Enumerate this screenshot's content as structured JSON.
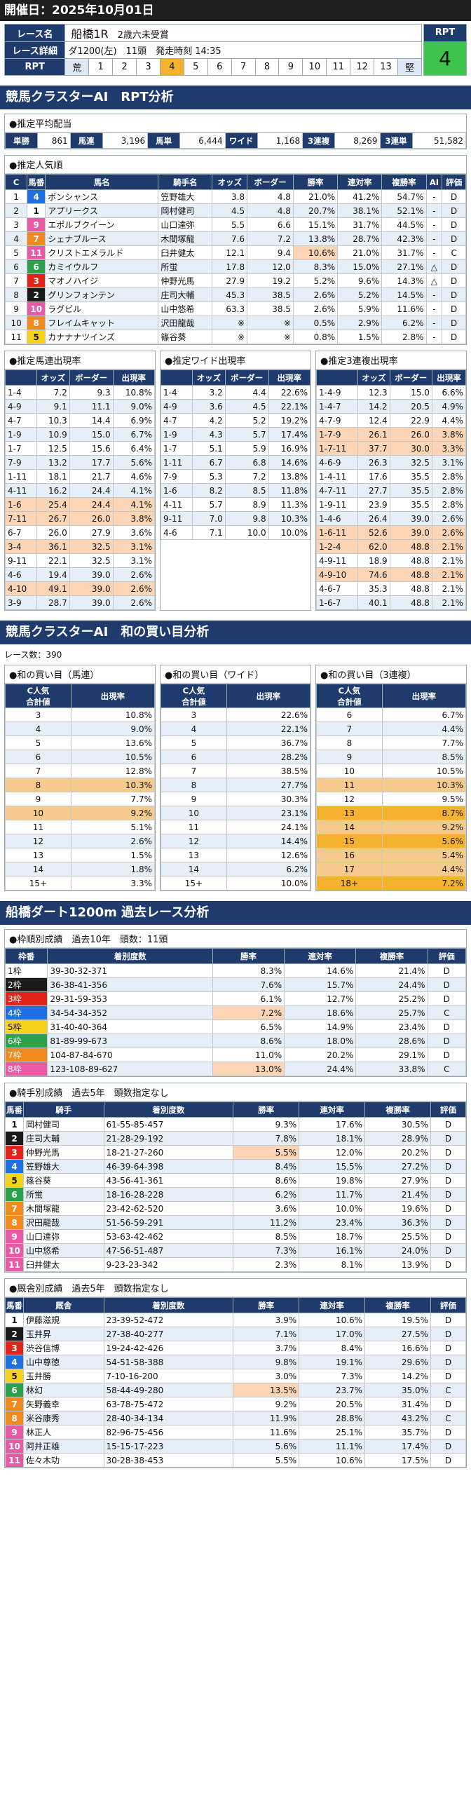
{
  "header": {
    "date": "開催日：2025年10月01日"
  },
  "race": {
    "name_label": "レース名",
    "name": "船橋1R",
    "cond": "2歳六未受賞",
    "detail_label": "レース詳細",
    "detail": "ダ1200(左)　11頭　発走時刻 14:35",
    "rpt_label": "RPT",
    "scale": [
      "荒",
      "1",
      "2",
      "3",
      "4",
      "5",
      "6",
      "7",
      "8",
      "9",
      "10",
      "11",
      "12",
      "13",
      "堅"
    ],
    "rpt_value": "4"
  },
  "sec1": {
    "title": "競馬クラスターAI　RPT分析"
  },
  "payout": {
    "title": "●推定平均配当",
    "items": [
      [
        "単勝",
        "861"
      ],
      [
        "馬連",
        "3,196"
      ],
      [
        "馬単",
        "6,444"
      ],
      [
        "ワイド",
        "1,168"
      ],
      [
        "3連複",
        "8,269"
      ],
      [
        "3連単",
        "51,582"
      ]
    ]
  },
  "pop": {
    "title": "●推定人気順",
    "headers": [
      "C",
      "馬番",
      "馬名",
      "騎手名",
      "オッズ",
      "ボーダー",
      "勝率",
      "連対率",
      "複勝率",
      "AI",
      "評価"
    ],
    "rows": [
      [
        "1",
        "4",
        "ボンシャンス",
        "笠野雄大",
        "3.8",
        "4.8",
        "21.0%",
        "41.2%",
        "54.7%",
        "-",
        "D"
      ],
      [
        "2",
        "1",
        "アプリークス",
        "岡村健司",
        "4.5",
        "4.8",
        "20.7%",
        "38.1%",
        "52.1%",
        "-",
        "D"
      ],
      [
        "3",
        "9",
        "エポルブクイーン",
        "山口達弥",
        "5.5",
        "6.6",
        "15.1%",
        "31.7%",
        "44.5%",
        "-",
        "D"
      ],
      [
        "4",
        "7",
        "シェナブルース",
        "木間塚龍",
        "7.6",
        "7.2",
        "13.8%",
        "28.7%",
        "42.3%",
        "-",
        "D"
      ],
      [
        "5",
        "11",
        "クリストエメラルド",
        "臼井健太",
        "12.1",
        "9.4",
        "10.6%",
        "21.0%",
        "31.7%",
        "-",
        "C"
      ],
      [
        "6",
        "6",
        "カミイウルフ",
        "所蛍",
        "17.8",
        "12.0",
        "8.3%",
        "15.0%",
        "27.1%",
        "△",
        "D"
      ],
      [
        "7",
        "3",
        "マオノハイジ",
        "仲野光馬",
        "27.9",
        "19.2",
        "5.2%",
        "9.6%",
        "14.3%",
        "△",
        "D"
      ],
      [
        "8",
        "2",
        "グリンフォンテン",
        "庄司大輔",
        "45.3",
        "38.5",
        "2.6%",
        "5.2%",
        "14.5%",
        "-",
        "D"
      ],
      [
        "9",
        "10",
        "ラグビル",
        "山中悠希",
        "63.3",
        "38.5",
        "2.6%",
        "5.9%",
        "11.6%",
        "-",
        "D"
      ],
      [
        "10",
        "8",
        "フレイムキャット",
        "沢田龍哉",
        "※",
        "※",
        "0.5%",
        "2.9%",
        "6.2%",
        "-",
        "D"
      ],
      [
        "11",
        "5",
        "カナナナツインズ",
        "篠谷葵",
        "※",
        "※",
        "0.8%",
        "1.5%",
        "2.8%",
        "-",
        "D"
      ]
    ]
  },
  "umaren": {
    "title": "●推定馬連出現率",
    "headers": [
      "",
      "オッズ",
      "ボーダー",
      "出現率"
    ],
    "rows": [
      [
        "1-4",
        "7.2",
        "9.3",
        "10.8%"
      ],
      [
        "4-9",
        "9.1",
        "11.1",
        "9.0%"
      ],
      [
        "4-7",
        "10.3",
        "14.4",
        "6.9%"
      ],
      [
        "1-9",
        "10.9",
        "15.0",
        "6.7%"
      ],
      [
        "1-7",
        "12.5",
        "15.6",
        "6.4%"
      ],
      [
        "7-9",
        "13.2",
        "17.7",
        "5.6%"
      ],
      [
        "1-11",
        "18.1",
        "21.7",
        "4.6%"
      ],
      [
        "4-11",
        "16.2",
        "24.4",
        "4.1%"
      ],
      [
        "1-6",
        "25.4",
        "24.4",
        "4.1%"
      ],
      [
        "7-11",
        "26.7",
        "26.0",
        "3.8%"
      ],
      [
        "6-7",
        "26.0",
        "27.9",
        "3.6%"
      ],
      [
        "3-4",
        "36.1",
        "32.5",
        "3.1%"
      ],
      [
        "9-11",
        "22.1",
        "32.5",
        "3.1%"
      ],
      [
        "4-6",
        "19.4",
        "39.0",
        "2.6%"
      ],
      [
        "4-10",
        "49.1",
        "39.0",
        "2.6%"
      ],
      [
        "3-9",
        "28.7",
        "39.0",
        "2.6%"
      ]
    ]
  },
  "wide": {
    "title": "●推定ワイド出現率",
    "headers": [
      "",
      "オッズ",
      "ボーダー",
      "出現率"
    ],
    "rows": [
      [
        "1-4",
        "3.2",
        "4.4",
        "22.6%"
      ],
      [
        "4-9",
        "3.6",
        "4.5",
        "22.1%"
      ],
      [
        "4-7",
        "4.2",
        "5.2",
        "19.2%"
      ],
      [
        "1-9",
        "4.3",
        "5.7",
        "17.4%"
      ],
      [
        "1-7",
        "5.1",
        "5.9",
        "16.9%"
      ],
      [
        "1-11",
        "6.7",
        "6.8",
        "14.6%"
      ],
      [
        "7-9",
        "5.3",
        "7.2",
        "13.8%"
      ],
      [
        "1-6",
        "8.2",
        "8.5",
        "11.8%"
      ],
      [
        "4-11",
        "5.7",
        "8.9",
        "11.3%"
      ],
      [
        "9-11",
        "7.0",
        "9.8",
        "10.3%"
      ],
      [
        "4-6",
        "7.1",
        "10.0",
        "10.0%"
      ]
    ]
  },
  "trio": {
    "title": "●推定3連複出現率",
    "headers": [
      "",
      "オッズ",
      "ボーダー",
      "出現率"
    ],
    "rows": [
      [
        "1-4-9",
        "12.3",
        "15.0",
        "6.6%"
      ],
      [
        "1-4-7",
        "14.2",
        "20.5",
        "4.9%"
      ],
      [
        "4-7-9",
        "12.4",
        "22.9",
        "4.4%"
      ],
      [
        "1-7-9",
        "26.1",
        "26.0",
        "3.8%"
      ],
      [
        "1-7-11",
        "37.7",
        "30.0",
        "3.3%"
      ],
      [
        "4-6-9",
        "26.3",
        "32.5",
        "3.1%"
      ],
      [
        "1-4-11",
        "17.6",
        "35.5",
        "2.8%"
      ],
      [
        "4-7-11",
        "27.7",
        "35.5",
        "2.8%"
      ],
      [
        "1-9-11",
        "23.9",
        "35.5",
        "2.8%"
      ],
      [
        "1-4-6",
        "26.4",
        "39.0",
        "2.6%"
      ],
      [
        "1-6-11",
        "52.6",
        "39.0",
        "2.6%"
      ],
      [
        "1-2-4",
        "62.0",
        "48.8",
        "2.1%"
      ],
      [
        "4-9-11",
        "18.9",
        "48.8",
        "2.1%"
      ],
      [
        "4-9-10",
        "74.6",
        "48.8",
        "2.1%"
      ],
      [
        "4-6-7",
        "35.3",
        "48.8",
        "2.1%"
      ],
      [
        "1-6-7",
        "40.1",
        "48.8",
        "2.1%"
      ]
    ]
  },
  "sec2": {
    "title": "競馬クラスターAI　和の買い目分析",
    "count": "レース数：390"
  },
  "wa_umaren": {
    "title": "●和の買い目（馬連）",
    "h1": "C人気",
    "h1b": "合計値",
    "h2": "出現率",
    "rows": [
      [
        "3",
        "10.8%"
      ],
      [
        "4",
        "9.0%"
      ],
      [
        "5",
        "13.6%"
      ],
      [
        "6",
        "10.5%"
      ],
      [
        "7",
        "12.8%"
      ],
      [
        "8",
        "10.3%"
      ],
      [
        "9",
        "7.7%"
      ],
      [
        "10",
        "9.2%"
      ],
      [
        "11",
        "5.1%"
      ],
      [
        "12",
        "2.6%"
      ],
      [
        "13",
        "1.5%"
      ],
      [
        "14",
        "1.8%"
      ],
      [
        "15+",
        "3.3%"
      ]
    ]
  },
  "wa_wide": {
    "title": "●和の買い目（ワイド）",
    "h1": "C人気",
    "h1b": "合計値",
    "h2": "出現率",
    "rows": [
      [
        "3",
        "22.6%"
      ],
      [
        "4",
        "22.1%"
      ],
      [
        "5",
        "36.7%"
      ],
      [
        "6",
        "28.2%"
      ],
      [
        "7",
        "38.5%"
      ],
      [
        "8",
        "27.7%"
      ],
      [
        "9",
        "30.3%"
      ],
      [
        "10",
        "23.1%"
      ],
      [
        "11",
        "24.1%"
      ],
      [
        "12",
        "14.4%"
      ],
      [
        "13",
        "12.6%"
      ],
      [
        "14",
        "6.2%"
      ],
      [
        "15+",
        "10.0%"
      ]
    ]
  },
  "wa_trio": {
    "title": "●和の買い目（3連複）",
    "h1": "C人気",
    "h1b": "合計値",
    "h2": "出現率",
    "rows": [
      [
        "6",
        "6.7%"
      ],
      [
        "7",
        "4.4%"
      ],
      [
        "8",
        "7.7%"
      ],
      [
        "9",
        "8.5%"
      ],
      [
        "10",
        "10.5%"
      ],
      [
        "11",
        "10.3%"
      ],
      [
        "12",
        "9.5%"
      ],
      [
        "13",
        "8.7%"
      ],
      [
        "14",
        "9.2%"
      ],
      [
        "15",
        "5.6%"
      ],
      [
        "16",
        "5.4%"
      ],
      [
        "17",
        "4.4%"
      ],
      [
        "18+",
        "7.2%"
      ]
    ]
  },
  "sec3": {
    "title": "船橋ダート1200m 過去レース分析"
  },
  "waku": {
    "title": "●枠順別成績　過去10年　頭数：11頭",
    "headers": [
      "枠番",
      "着別度数",
      "勝率",
      "連対率",
      "複勝率",
      "評価"
    ],
    "rows": [
      [
        "1枠",
        "39-30-32-371",
        "8.3%",
        "14.6%",
        "21.4%",
        "D"
      ],
      [
        "2枠",
        "36-38-41-356",
        "7.6%",
        "15.7%",
        "24.4%",
        "D"
      ],
      [
        "3枠",
        "29-31-59-353",
        "6.1%",
        "12.7%",
        "25.2%",
        "D"
      ],
      [
        "4枠",
        "34-54-34-352",
        "7.2%",
        "18.6%",
        "25.7%",
        "C"
      ],
      [
        "5枠",
        "31-40-40-364",
        "6.5%",
        "14.9%",
        "23.4%",
        "D"
      ],
      [
        "6枠",
        "81-89-99-673",
        "8.6%",
        "18.0%",
        "28.6%",
        "D"
      ],
      [
        "7枠",
        "104-87-84-670",
        "11.0%",
        "20.2%",
        "29.1%",
        "D"
      ],
      [
        "8枠",
        "123-108-89-627",
        "13.0%",
        "24.4%",
        "33.8%",
        "C"
      ]
    ]
  },
  "jockey": {
    "title": "●騎手別成績　過去5年　頭数指定なし",
    "headers": [
      "馬番",
      "騎手",
      "着別度数",
      "勝率",
      "連対率",
      "複勝率",
      "評価"
    ],
    "rows": [
      [
        "1",
        "岡村健司",
        "61-55-85-457",
        "9.3%",
        "17.6%",
        "30.5%",
        "D"
      ],
      [
        "2",
        "庄司大輔",
        "21-28-29-192",
        "7.8%",
        "18.1%",
        "28.9%",
        "D"
      ],
      [
        "3",
        "仲野光馬",
        "18-21-27-260",
        "5.5%",
        "12.0%",
        "20.2%",
        "D"
      ],
      [
        "4",
        "笠野雄大",
        "46-39-64-398",
        "8.4%",
        "15.5%",
        "27.2%",
        "D"
      ],
      [
        "5",
        "篠谷葵",
        "43-56-41-361",
        "8.6%",
        "19.8%",
        "27.9%",
        "D"
      ],
      [
        "6",
        "所蛍",
        "18-16-28-228",
        "6.2%",
        "11.7%",
        "21.4%",
        "D"
      ],
      [
        "7",
        "木間塚龍",
        "23-42-62-520",
        "3.6%",
        "10.0%",
        "19.6%",
        "D"
      ],
      [
        "8",
        "沢田龍哉",
        "51-56-59-291",
        "11.2%",
        "23.4%",
        "36.3%",
        "D"
      ],
      [
        "9",
        "山口達弥",
        "53-63-42-462",
        "8.5%",
        "18.7%",
        "25.5%",
        "D"
      ],
      [
        "10",
        "山中悠希",
        "47-56-51-487",
        "7.3%",
        "16.1%",
        "24.0%",
        "D"
      ],
      [
        "11",
        "臼井健太",
        "9-23-23-342",
        "2.3%",
        "8.1%",
        "13.9%",
        "D"
      ]
    ]
  },
  "trainer": {
    "title": "●厩舎別成績　過去5年　頭数指定なし",
    "headers": [
      "馬番",
      "厩舎",
      "着別度数",
      "勝率",
      "連対率",
      "複勝率",
      "評価"
    ],
    "rows": [
      [
        "1",
        "伊藤滋規",
        "23-39-52-472",
        "3.9%",
        "10.6%",
        "19.5%",
        "D"
      ],
      [
        "2",
        "玉井昇",
        "27-38-40-277",
        "7.1%",
        "17.0%",
        "27.5%",
        "D"
      ],
      [
        "3",
        "渋谷信博",
        "19-24-42-426",
        "3.7%",
        "8.4%",
        "16.6%",
        "D"
      ],
      [
        "4",
        "山中尊徳",
        "54-51-58-388",
        "9.8%",
        "19.1%",
        "29.6%",
        "D"
      ],
      [
        "5",
        "玉井勝",
        "7-10-16-200",
        "3.0%",
        "7.3%",
        "14.2%",
        "D"
      ],
      [
        "6",
        "林幻",
        "58-44-49-280",
        "13.5%",
        "23.7%",
        "35.0%",
        "C"
      ],
      [
        "7",
        "矢野義幸",
        "63-78-75-472",
        "9.2%",
        "20.5%",
        "31.4%",
        "D"
      ],
      [
        "8",
        "米谷康秀",
        "28-40-34-134",
        "11.9%",
        "28.8%",
        "43.2%",
        "C"
      ],
      [
        "9",
        "林正人",
        "82-96-75-456",
        "11.6%",
        "25.1%",
        "35.7%",
        "D"
      ],
      [
        "10",
        "阿井正雄",
        "15-15-17-223",
        "5.6%",
        "11.1%",
        "17.4%",
        "D"
      ],
      [
        "11",
        "佐々木功",
        "30-28-38-453",
        "5.5%",
        "10.6%",
        "17.5%",
        "D"
      ]
    ]
  },
  "colors": {
    "w1": "#ffffff",
    "w2": "#1a1a1a",
    "w3": "#e2231a",
    "w4": "#1e6fe0",
    "w5": "#f6d31a",
    "w6": "#2aa14a",
    "w7": "#f08a1e",
    "w8": "#e85aa6",
    "navy": "#1f3b6d",
    "alt": "#e6eef8",
    "orange": "#f5b130",
    "peach": "#fbd5b5"
  }
}
